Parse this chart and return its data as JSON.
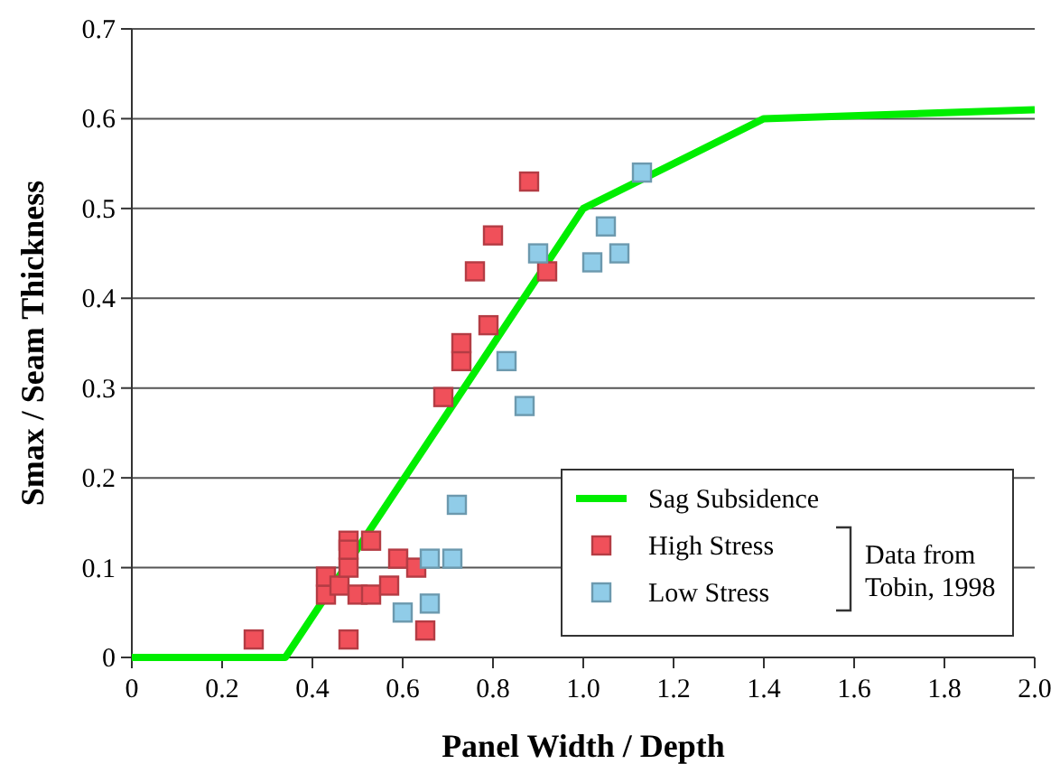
{
  "chart_data": {
    "type": "scatter",
    "xlabel": "Panel Width / Depth",
    "ylabel": "Smax / Seam Thickness",
    "xlim": [
      0,
      2
    ],
    "ylim": [
      0,
      0.7
    ],
    "xticks": [
      0,
      0.2,
      0.4,
      0.6,
      0.8,
      {
        "value": 1,
        "label": "1.0"
      },
      1.2,
      1.4,
      1.6,
      1.8,
      {
        "value": 2,
        "label": "2.0"
      }
    ],
    "yticks": [
      0,
      0.1,
      0.2,
      0.3,
      0.4,
      0.5,
      0.6,
      0.7
    ],
    "grid": "y",
    "legend": "bottom right",
    "marker": "square",
    "annotations": [
      "Data from Tobin, 1998"
    ],
    "series": [
      {
        "name": "Sag Subsidence",
        "type": "line",
        "color": "#00ee00",
        "marker": "none",
        "x": [
          0,
          0.34,
          1.0,
          1.4,
          2.0
        ],
        "values": [
          0,
          0,
          0.5,
          0.6,
          0.61
        ]
      },
      {
        "name": "High Stress",
        "color": "#f0505a",
        "x": [
          0.27,
          0.43,
          0.43,
          0.46,
          0.48,
          0.48,
          0.48,
          0.5,
          0.53,
          0.53,
          0.57,
          0.59,
          0.63,
          0.65,
          0.69,
          0.73,
          0.73,
          0.76,
          0.79,
          0.8,
          0.88,
          0.92,
          0.48
        ],
        "values": [
          0.02,
          0.07,
          0.09,
          0.08,
          0.02,
          0.1,
          0.13,
          0.07,
          0.07,
          0.13,
          0.08,
          0.11,
          0.1,
          0.03,
          0.29,
          0.33,
          0.35,
          0.43,
          0.37,
          0.47,
          0.53,
          0.43,
          0.12
        ]
      },
      {
        "name": "Low Stress",
        "color": "#90cce8",
        "x": [
          0.6,
          0.66,
          0.66,
          0.71,
          0.72,
          0.83,
          0.87,
          0.9,
          1.02,
          1.05,
          1.08,
          1.13
        ],
        "values": [
          0.05,
          0.06,
          0.11,
          0.11,
          0.17,
          0.33,
          0.28,
          0.45,
          0.44,
          0.48,
          0.45,
          0.54
        ]
      }
    ]
  }
}
